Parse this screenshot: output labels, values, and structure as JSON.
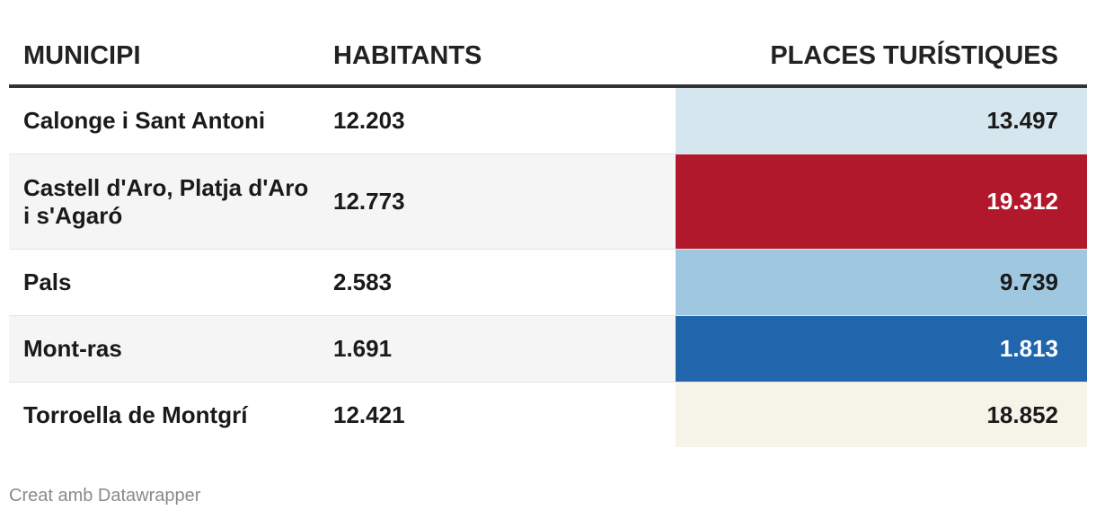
{
  "chart_data": {
    "type": "table",
    "columns": [
      "MUNICIPI",
      "HABITANTS",
      "PLACES TURÍSTIQUES"
    ],
    "rows": [
      {
        "municipi": "Calonge i Sant Antoni",
        "habitants": "12.203",
        "places": "13.497",
        "color": "#d6e6ef",
        "text_color": "#1a1a1a"
      },
      {
        "municipi": "Castell d'Aro, Platja d'Aro i s'Agaró",
        "habitants": "12.773",
        "places": "19.312",
        "color": "#b2182b",
        "text_color": "#ffffff"
      },
      {
        "municipi": "Pals",
        "habitants": "2.583",
        "places": "9.739",
        "color": "#9fc7e0",
        "text_color": "#1a1a1a"
      },
      {
        "municipi": "Mont-ras",
        "habitants": "1.691",
        "places": "1.813",
        "color": "#2166ac",
        "text_color": "#ffffff"
      },
      {
        "municipi": "Torroella de Montgrí",
        "habitants": "12.421",
        "places": "18.852",
        "color": "#f6f4e8",
        "text_color": "#1a1a1a"
      }
    ]
  },
  "footer": {
    "credit": "Creat amb Datawrapper"
  }
}
